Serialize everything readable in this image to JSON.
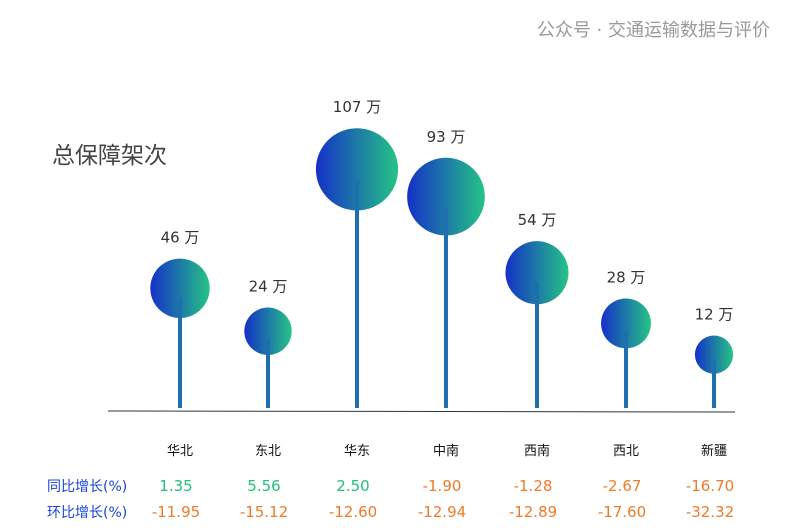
{
  "chart_data": {
    "type": "lollipop",
    "title": "总保障架次",
    "categories": [
      "华北",
      "东北",
      "华东",
      "中南",
      "西南",
      "西北",
      "新疆"
    ],
    "values": [
      46,
      24,
      107,
      93,
      54,
      28,
      12
    ],
    "unit": "万",
    "data_labels": [
      "46 万",
      "24 万",
      "107 万",
      "93 万",
      "54 万",
      "28 万",
      "12 万"
    ],
    "table_rows": [
      {
        "label": "同比增长(%)",
        "values": [
          "1.35",
          "5.56",
          "2.50",
          "-1.90",
          "-1.28",
          "-2.67",
          "-16.70"
        ]
      },
      {
        "label": "环比增长(%)",
        "values": [
          "-11.95",
          "-15.12",
          "-12.60",
          "-12.94",
          "-12.89",
          "-17.60",
          "-32.32"
        ]
      }
    ],
    "grid": false,
    "colors": {
      "gradient_start": "#1530c8",
      "gradient_end": "#25c485",
      "stem": "#1f6fae",
      "positive": "#22c07a",
      "negative": "#f07a2a",
      "row_label": "#1a44d8"
    }
  },
  "watermark": "公众号 · 交通运输数据与评价"
}
